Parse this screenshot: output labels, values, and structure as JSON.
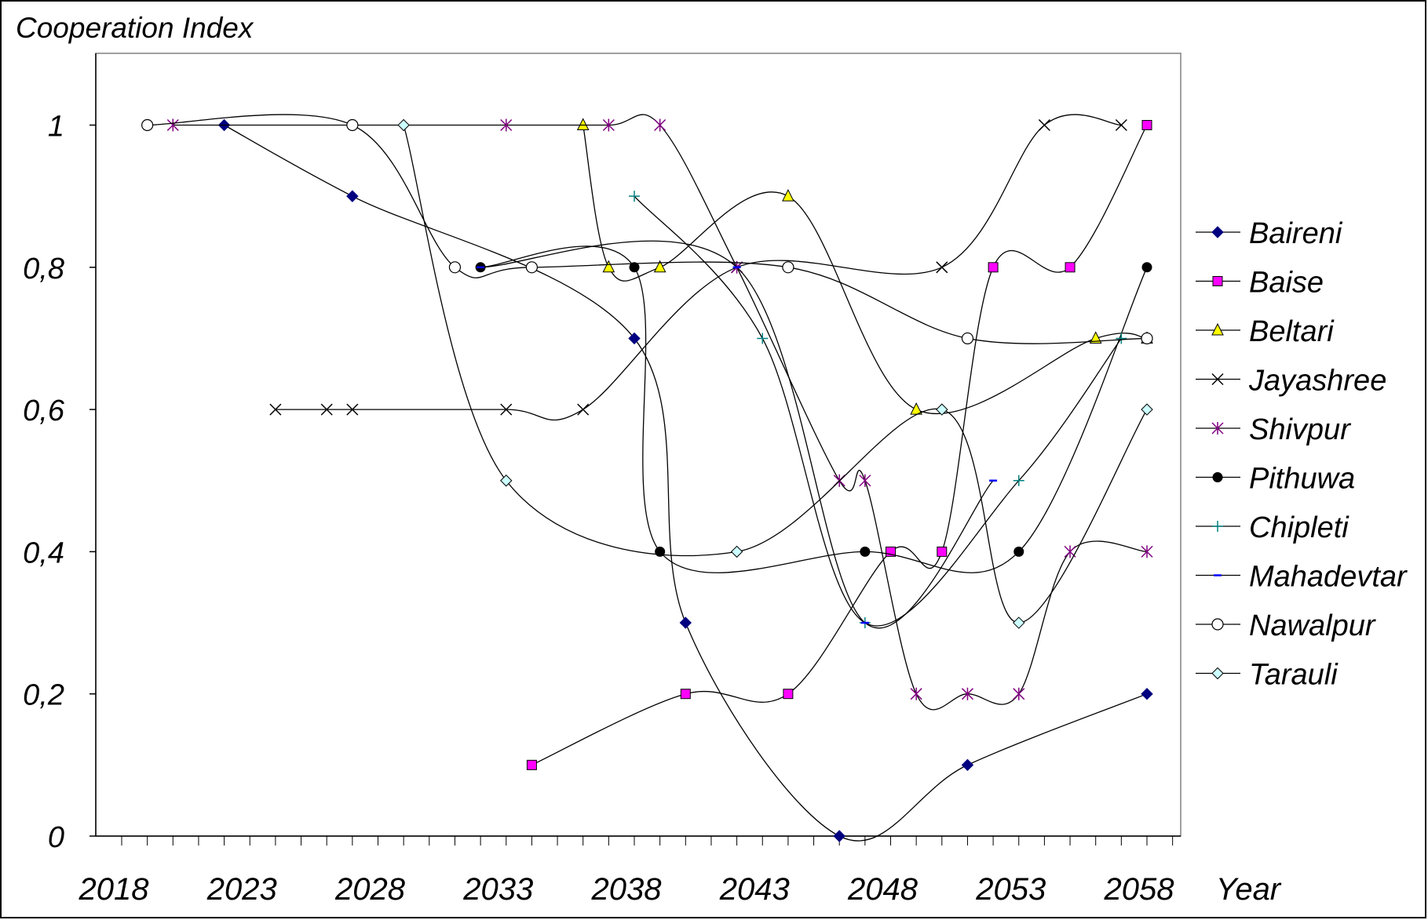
{
  "chart_data": {
    "type": "line",
    "title": "",
    "ylabel": "Cooperation Index",
    "xlabel": "Year",
    "xlim": [
      2018,
      2060
    ],
    "ylim": [
      0,
      1.1
    ],
    "x_ticks": [
      2018,
      2023,
      2028,
      2033,
      2038,
      2043,
      2048,
      2053,
      2058
    ],
    "y_ticks": [
      {
        "value": 0,
        "label": "0"
      },
      {
        "value": 0.2,
        "label": "0,2"
      },
      {
        "value": 0.4,
        "label": "0,4"
      },
      {
        "value": 0.6,
        "label": "0,6"
      },
      {
        "value": 0.8,
        "label": "0,8"
      },
      {
        "value": 1,
        "label": "1"
      }
    ],
    "grid": false,
    "legend_position": "right",
    "series": [
      {
        "name": "Baireni",
        "marker": "diamond-filled",
        "color": "#000080",
        "points": [
          [
            2022,
            1
          ],
          [
            2027,
            0.9
          ],
          [
            2038,
            0.7
          ],
          [
            2040,
            0.3
          ],
          [
            2046,
            0
          ],
          [
            2051,
            0.1
          ],
          [
            2058,
            0.2
          ]
        ]
      },
      {
        "name": "Baise",
        "marker": "square",
        "color": "#ff00ff",
        "points": [
          [
            2034,
            0.1
          ],
          [
            2040,
            0.2
          ],
          [
            2044,
            0.2
          ],
          [
            2048,
            0.4
          ],
          [
            2050,
            0.4
          ],
          [
            2052,
            0.8
          ],
          [
            2055,
            0.8
          ],
          [
            2058,
            1
          ]
        ]
      },
      {
        "name": "Beltari",
        "marker": "triangle",
        "color": "#ffff00",
        "points": [
          [
            2036,
            1
          ],
          [
            2037,
            0.8
          ],
          [
            2039,
            0.8
          ],
          [
            2044,
            0.9
          ],
          [
            2049,
            0.6
          ],
          [
            2056,
            0.7
          ],
          [
            2058,
            0.7
          ]
        ]
      },
      {
        "name": "Jayashree",
        "marker": "x",
        "color": "#000000",
        "points": [
          [
            2024,
            0.6
          ],
          [
            2026,
            0.6
          ],
          [
            2027,
            0.6
          ],
          [
            2033,
            0.6
          ],
          [
            2036,
            0.6
          ],
          [
            2042,
            0.8
          ],
          [
            2050,
            0.8
          ],
          [
            2054,
            1
          ],
          [
            2057,
            1
          ]
        ]
      },
      {
        "name": "Shivpur",
        "marker": "star",
        "color": "#800080",
        "points": [
          [
            2020,
            1
          ],
          [
            2033,
            1
          ],
          [
            2037,
            1
          ],
          [
            2039,
            1
          ],
          [
            2042,
            0.8
          ],
          [
            2046,
            0.5
          ],
          [
            2047,
            0.5
          ],
          [
            2049,
            0.2
          ],
          [
            2051,
            0.2
          ],
          [
            2053,
            0.2
          ],
          [
            2055,
            0.4
          ],
          [
            2058,
            0.4
          ]
        ]
      },
      {
        "name": "Pithuwa",
        "marker": "circle-filled",
        "color": "#000000",
        "points": [
          [
            2032,
            0.8
          ],
          [
            2038,
            0.8
          ],
          [
            2039,
            0.4
          ],
          [
            2047,
            0.4
          ],
          [
            2053,
            0.4
          ],
          [
            2058,
            0.8
          ]
        ]
      },
      {
        "name": "Chipleti",
        "marker": "plus",
        "color": "#008080",
        "points": [
          [
            2038,
            0.9
          ],
          [
            2043,
            0.7
          ],
          [
            2047,
            0.3
          ],
          [
            2053,
            0.5
          ],
          [
            2057,
            0.7
          ]
        ]
      },
      {
        "name": "Mahadevtar",
        "marker": "dash",
        "color": "#0000ff",
        "points": [
          [
            2032,
            0.8
          ],
          [
            2042,
            0.8
          ],
          [
            2047,
            0.3
          ],
          [
            2052,
            0.5
          ]
        ]
      },
      {
        "name": "Nawalpur",
        "marker": "circle-open",
        "color": "#000000",
        "points": [
          [
            2019,
            1
          ],
          [
            2027,
            1
          ],
          [
            2031,
            0.8
          ],
          [
            2034,
            0.8
          ],
          [
            2044,
            0.8
          ],
          [
            2051,
            0.7
          ],
          [
            2058,
            0.7
          ]
        ]
      },
      {
        "name": "Tarauli",
        "marker": "diamond-open",
        "color": "#00ffff",
        "points": [
          [
            2029,
            1
          ],
          [
            2033,
            0.5
          ],
          [
            2042,
            0.4
          ],
          [
            2050,
            0.6
          ],
          [
            2053,
            0.3
          ],
          [
            2058,
            0.6
          ]
        ]
      }
    ]
  }
}
